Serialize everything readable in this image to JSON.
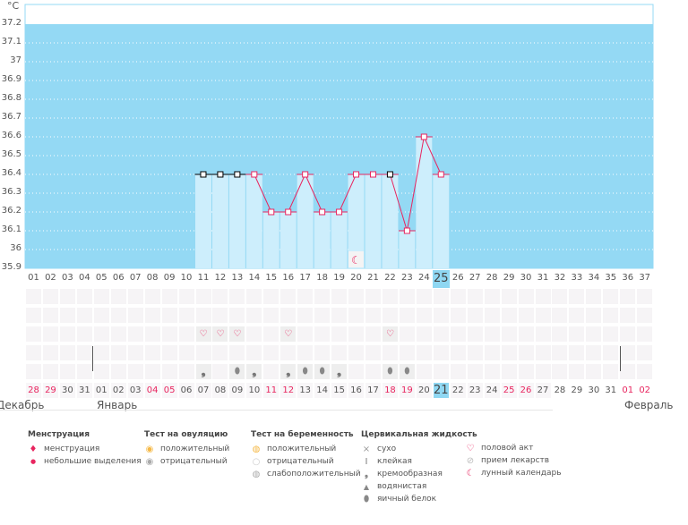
{
  "unit": "°C",
  "chart_data": {
    "type": "line",
    "ylim": [
      35.9,
      37.2
    ],
    "y_ticks": [
      "37.2",
      "37.1",
      "37",
      "36.9",
      "36.8",
      "36.7",
      "36.6",
      "36.5",
      "36.4",
      "36.3",
      "36.2",
      "36.1",
      "36",
      "35.9"
    ],
    "cycle_days": [
      "01",
      "02",
      "03",
      "04",
      "05",
      "06",
      "07",
      "08",
      "09",
      "10",
      "11",
      "12",
      "13",
      "14",
      "15",
      "16",
      "17",
      "18",
      "19",
      "20",
      "21",
      "22",
      "23",
      "24",
      "25",
      "26",
      "27",
      "28",
      "29",
      "30",
      "31",
      "32",
      "33",
      "34",
      "35",
      "36",
      "37"
    ],
    "temperatures": {
      "11": 36.4,
      "12": 36.4,
      "13": 36.4,
      "14": 36.4,
      "15": 36.2,
      "16": 36.2,
      "17": 36.4,
      "18": 36.2,
      "19": 36.2,
      "20": 36.4,
      "21": 36.4,
      "22": 36.4,
      "23": 36.1,
      "24": 36.6,
      "25": 36.4
    },
    "excluded_days": [
      11,
      12,
      13,
      22
    ],
    "current_day": 25,
    "colors": {
      "background": "#94d9f4",
      "bar": "#cdeefc",
      "line": "#e8255f"
    }
  },
  "moon_day": 20,
  "markers": {
    "intercourse_days": [
      11,
      12,
      13,
      16,
      22
    ],
    "fluid": {
      "11": "creamy",
      "13": "egg-white",
      "14": "creamy",
      "16": "creamy",
      "17": "egg-white",
      "18": "egg-white",
      "19": "creamy",
      "22": "egg-white",
      "23": "egg-white"
    }
  },
  "calendar": {
    "dates": [
      "28",
      "29",
      "30",
      "31",
      "01",
      "02",
      "03",
      "04",
      "05",
      "06",
      "07",
      "08",
      "09",
      "10",
      "11",
      "12",
      "13",
      "14",
      "15",
      "16",
      "17",
      "18",
      "19",
      "20",
      "21",
      "22",
      "23",
      "24",
      "25",
      "26",
      "27",
      "28",
      "29",
      "30",
      "31",
      "01",
      "02"
    ],
    "weekend_idx": [
      0,
      1,
      7,
      8,
      14,
      15,
      21,
      22,
      28,
      29,
      35,
      36
    ],
    "months": [
      "Декабрь",
      "Январь",
      "Февраль"
    ]
  },
  "legend": {
    "menstruation": {
      "title": "Менструация",
      "items": [
        "менструация",
        "небольшие выделения"
      ]
    },
    "ovulation": {
      "title": "Тест на овуляцию",
      "items": [
        "положительный",
        "отрицательный"
      ]
    },
    "pregnancy": {
      "title": "Тест на беременность",
      "items": [
        "положительный",
        "отрицательный",
        "слабоположительный"
      ]
    },
    "fluid": {
      "title": "Цервикальная жидкость",
      "items": [
        "сухо",
        "клейкая",
        "кремообразная",
        "водянистая",
        "яичный белок"
      ]
    },
    "other": {
      "items": [
        "половой акт",
        "прием лекарств",
        "лунный календарь"
      ]
    }
  }
}
